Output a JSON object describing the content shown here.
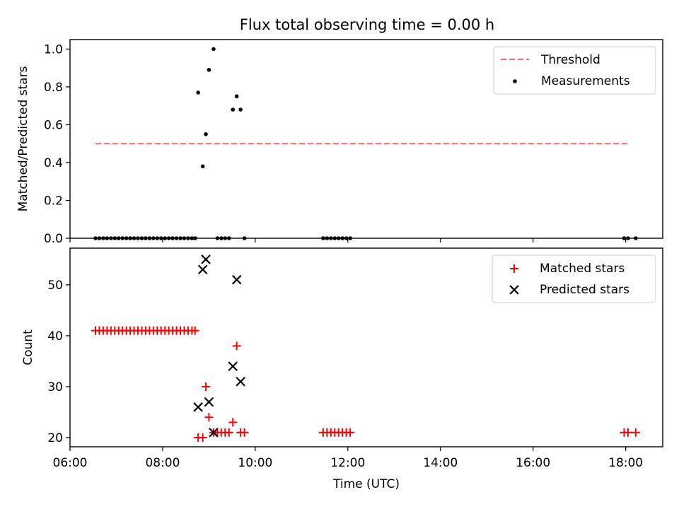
{
  "figure_title": "Flux total observing time = 0.00 h",
  "colors": {
    "threshold": "#ff6666",
    "measurements": "#000000",
    "matched": "#ff0000",
    "predicted": "#000000",
    "axes": "#000000"
  },
  "chart_data": [
    {
      "type": "scatter",
      "title": "Flux total observing time = 0.00 h",
      "xlabel": "",
      "ylabel": "Matched/Predicted stars",
      "xlim": [
        "06:00",
        "18:48"
      ],
      "ylim": [
        0,
        1.05
      ],
      "yticks": [
        "0.0",
        "0.2",
        "0.4",
        "0.6",
        "0.8",
        "1.0"
      ],
      "yticks_values": [
        0,
        0.2,
        0.4,
        0.6,
        0.8,
        1.0
      ],
      "xticks_values": [
        "06:00",
        "08:00",
        "10:00",
        "12:00",
        "14:00",
        "16:00",
        "18:00"
      ],
      "xtick_labels_shown": false,
      "legend": {
        "placement": "upper-right",
        "entries": [
          "Threshold",
          "Measurements"
        ]
      },
      "series": [
        {
          "name": "Threshold",
          "kind": "dashed-line",
          "x": [
            "06:33",
            "18:03"
          ],
          "y": [
            0.5,
            0.5
          ]
        },
        {
          "name": "Measurements",
          "kind": "dot",
          "points": [
            [
              "06:33",
              0
            ],
            [
              "06:38",
              0
            ],
            [
              "06:43",
              0
            ],
            [
              "06:48",
              0
            ],
            [
              "06:53",
              0
            ],
            [
              "06:58",
              0
            ],
            [
              "07:03",
              0
            ],
            [
              "07:08",
              0
            ],
            [
              "07:13",
              0
            ],
            [
              "07:18",
              0
            ],
            [
              "07:23",
              0
            ],
            [
              "07:28",
              0
            ],
            [
              "07:33",
              0
            ],
            [
              "07:38",
              0
            ],
            [
              "07:43",
              0
            ],
            [
              "07:48",
              0
            ],
            [
              "07:53",
              0
            ],
            [
              "07:58",
              0
            ],
            [
              "08:03",
              0
            ],
            [
              "08:08",
              0
            ],
            [
              "08:13",
              0
            ],
            [
              "08:18",
              0
            ],
            [
              "08:23",
              0
            ],
            [
              "08:28",
              0
            ],
            [
              "08:33",
              0
            ],
            [
              "08:38",
              0
            ],
            [
              "08:42",
              0
            ],
            [
              "08:46",
              0.77
            ],
            [
              "08:52",
              0.38
            ],
            [
              "08:56",
              0.55
            ],
            [
              "09:00",
              0.89
            ],
            [
              "09:06",
              1.0
            ],
            [
              "09:11",
              0
            ],
            [
              "09:16",
              0
            ],
            [
              "09:21",
              0
            ],
            [
              "09:26",
              0
            ],
            [
              "09:31",
              0.68
            ],
            [
              "09:36",
              0.75
            ],
            [
              "09:41",
              0.68
            ],
            [
              "09:46",
              0
            ],
            [
              "11:28",
              0
            ],
            [
              "11:33",
              0
            ],
            [
              "11:38",
              0
            ],
            [
              "11:43",
              0
            ],
            [
              "11:48",
              0
            ],
            [
              "11:53",
              0
            ],
            [
              "11:58",
              0
            ],
            [
              "12:03",
              0
            ],
            [
              "17:58",
              0
            ],
            [
              "18:03",
              0
            ],
            [
              "18:13",
              0
            ]
          ]
        }
      ]
    },
    {
      "type": "scatter",
      "title": "",
      "xlabel": "Time (UTC)",
      "ylabel": "Count",
      "xlim": [
        "06:00",
        "18:48"
      ],
      "ylim": [
        18.2,
        57.2
      ],
      "yticks": [
        "20",
        "30",
        "40",
        "50"
      ],
      "yticks_values": [
        20,
        30,
        40,
        50
      ],
      "xticks": [
        "06:00",
        "08:00",
        "10:00",
        "12:00",
        "14:00",
        "16:00",
        "18:00"
      ],
      "legend": {
        "placement": "upper-right",
        "entries": [
          "Matched stars",
          "Predicted stars"
        ]
      },
      "series": [
        {
          "name": "Matched stars",
          "kind": "plus",
          "points": [
            [
              "06:33",
              41
            ],
            [
              "06:38",
              41
            ],
            [
              "06:43",
              41
            ],
            [
              "06:48",
              41
            ],
            [
              "06:53",
              41
            ],
            [
              "06:58",
              41
            ],
            [
              "07:03",
              41
            ],
            [
              "07:08",
              41
            ],
            [
              "07:13",
              41
            ],
            [
              "07:18",
              41
            ],
            [
              "07:23",
              41
            ],
            [
              "07:28",
              41
            ],
            [
              "07:33",
              41
            ],
            [
              "07:38",
              41
            ],
            [
              "07:43",
              41
            ],
            [
              "07:48",
              41
            ],
            [
              "07:53",
              41
            ],
            [
              "07:58",
              41
            ],
            [
              "08:03",
              41
            ],
            [
              "08:08",
              41
            ],
            [
              "08:13",
              41
            ],
            [
              "08:18",
              41
            ],
            [
              "08:23",
              41
            ],
            [
              "08:28",
              41
            ],
            [
              "08:33",
              41
            ],
            [
              "08:38",
              41
            ],
            [
              "08:42",
              41
            ],
            [
              "08:46",
              20
            ],
            [
              "08:52",
              20
            ],
            [
              "08:56",
              30
            ],
            [
              "09:00",
              24
            ],
            [
              "09:06",
              21
            ],
            [
              "09:11",
              21
            ],
            [
              "09:16",
              21
            ],
            [
              "09:21",
              21
            ],
            [
              "09:26",
              21
            ],
            [
              "09:31",
              23
            ],
            [
              "09:36",
              38
            ],
            [
              "09:41",
              21
            ],
            [
              "09:46",
              21
            ],
            [
              "11:28",
              21
            ],
            [
              "11:33",
              21
            ],
            [
              "11:38",
              21
            ],
            [
              "11:43",
              21
            ],
            [
              "11:48",
              21
            ],
            [
              "11:53",
              21
            ],
            [
              "11:58",
              21
            ],
            [
              "12:03",
              21
            ],
            [
              "17:58",
              21
            ],
            [
              "18:03",
              21
            ],
            [
              "18:13",
              21
            ]
          ]
        },
        {
          "name": "Predicted stars",
          "kind": "x",
          "points": [
            [
              "08:46",
              26
            ],
            [
              "08:52",
              53
            ],
            [
              "08:56",
              55
            ],
            [
              "09:00",
              27
            ],
            [
              "09:06",
              21
            ],
            [
              "09:31",
              34
            ],
            [
              "09:36",
              51
            ],
            [
              "09:41",
              31
            ]
          ]
        }
      ]
    }
  ]
}
